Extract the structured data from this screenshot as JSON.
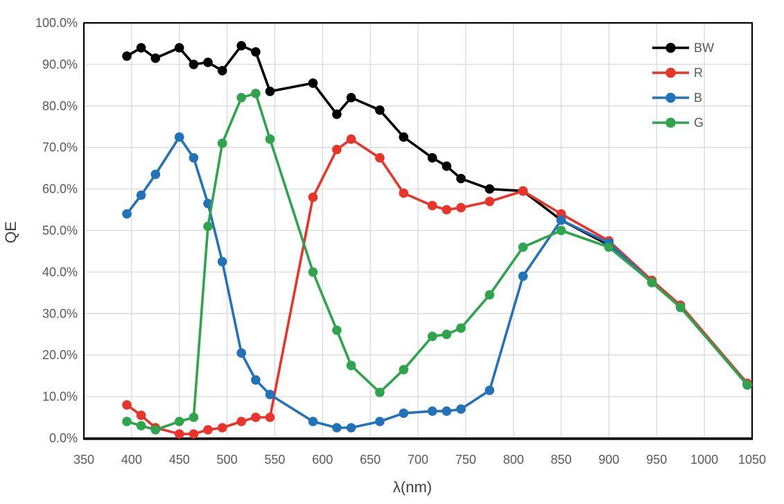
{
  "chart_data": {
    "type": "line",
    "title": "",
    "xlabel": "λ(nm)",
    "ylabel": "QE",
    "xlim": [
      350,
      1050
    ],
    "ylim": [
      0,
      100
    ],
    "grid": true,
    "x_ticks": [
      350,
      400,
      450,
      500,
      550,
      600,
      650,
      700,
      750,
      800,
      850,
      900,
      950,
      1000,
      1050
    ],
    "y_ticks": [
      {
        "value": 0,
        "label": "0.0%"
      },
      {
        "value": 10,
        "label": "10.0%"
      },
      {
        "value": 20,
        "label": "20.0%"
      },
      {
        "value": 30,
        "label": "30.0%"
      },
      {
        "value": 40,
        "label": "40.0%"
      },
      {
        "value": 50,
        "label": "50.0%"
      },
      {
        "value": 60,
        "label": "60.0%"
      },
      {
        "value": 70,
        "label": "70.0%"
      },
      {
        "value": 80,
        "label": "80.0%"
      },
      {
        "value": 90,
        "label": "90.0%"
      },
      {
        "value": 100,
        "label": "100.0%"
      }
    ],
    "legend": {
      "position": "top-right-inside",
      "entries": [
        "BW",
        "R",
        "B",
        "G"
      ]
    },
    "x_values": [
      395,
      410,
      425,
      450,
      465,
      480,
      495,
      515,
      530,
      545,
      590,
      615,
      630,
      660,
      685,
      715,
      730,
      745,
      775,
      810,
      850,
      900,
      945,
      975,
      1045
    ],
    "series": [
      {
        "name": "BW",
        "color": "#000000",
        "values": [
          92,
          94,
          91.5,
          94,
          90,
          90.5,
          88.5,
          94.5,
          93,
          83.5,
          85.5,
          78,
          82,
          79,
          72.5,
          67.5,
          65.5,
          62.5,
          60,
          59.5,
          52.5,
          46.5,
          37.5,
          31.5,
          13
        ]
      },
      {
        "name": "R",
        "color": "#ea3329",
        "values": [
          8,
          5.5,
          2.5,
          1,
          1,
          2,
          2.5,
          4,
          5,
          5,
          58,
          69.5,
          72,
          67.5,
          59,
          56,
          55,
          55.5,
          57,
          59.5,
          54,
          47.5,
          38,
          32,
          13.2
        ]
      },
      {
        "name": "B",
        "color": "#2272b9",
        "values": [
          54,
          58.5,
          63.5,
          72.5,
          67.5,
          56.5,
          42.5,
          20.5,
          14,
          10.5,
          4,
          2.5,
          2.5,
          4,
          6,
          6.5,
          6.5,
          7,
          11.5,
          39,
          52.5,
          47,
          37.5,
          31.5,
          12.8
        ]
      },
      {
        "name": "G",
        "color": "#2ea44c",
        "values": [
          4,
          3,
          2,
          4,
          5,
          51,
          71,
          82,
          83,
          72,
          40,
          26,
          17.5,
          11,
          16.5,
          24.5,
          25,
          26.5,
          34.5,
          46,
          50,
          46,
          37.5,
          31.5,
          12.8
        ]
      }
    ]
  },
  "colors": {
    "grid": "#d9d9d9",
    "tick_text": "#595959",
    "legend_text": "#595959",
    "axis_title_text": "#3f3f3f",
    "plot_border": "#000000",
    "background": "#ffffff"
  }
}
